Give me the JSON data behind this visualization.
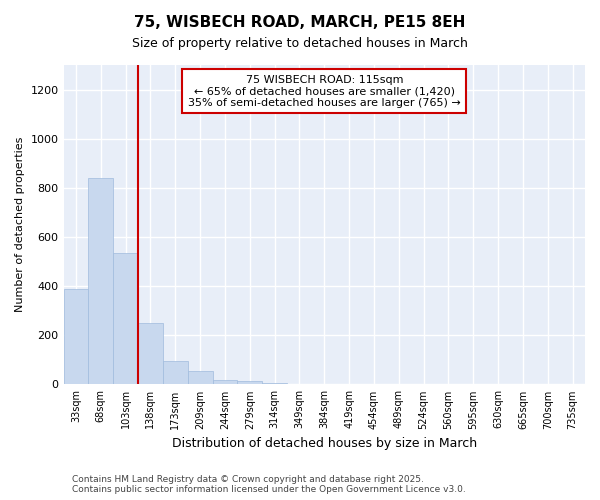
{
  "title": "75, WISBECH ROAD, MARCH, PE15 8EH",
  "subtitle": "Size of property relative to detached houses in March",
  "xlabel": "Distribution of detached houses by size in March",
  "ylabel": "Number of detached properties",
  "bar_color": "#c8d8ee",
  "bar_edge_color": "#a0bbdd",
  "categories": [
    "33sqm",
    "68sqm",
    "103sqm",
    "138sqm",
    "173sqm",
    "209sqm",
    "244sqm",
    "279sqm",
    "314sqm",
    "349sqm",
    "384sqm",
    "419sqm",
    "454sqm",
    "489sqm",
    "524sqm",
    "560sqm",
    "595sqm",
    "630sqm",
    "665sqm",
    "700sqm",
    "735sqm"
  ],
  "values": [
    390,
    840,
    535,
    248,
    97,
    55,
    20,
    12,
    5,
    2,
    1,
    0,
    0,
    0,
    0,
    0,
    0,
    0,
    0,
    0,
    0
  ],
  "ylim": [
    0,
    1300
  ],
  "yticks": [
    0,
    200,
    400,
    600,
    800,
    1000,
    1200
  ],
  "annotation_title": "75 WISBECH ROAD: 115sqm",
  "annotation_line1": "← 65% of detached houses are smaller (1,420)",
  "annotation_line2": "35% of semi-detached houses are larger (765) →",
  "annotation_box_color": "#ffffff",
  "annotation_box_edge": "#cc0000",
  "footnote1": "Contains HM Land Registry data © Crown copyright and database right 2025.",
  "footnote2": "Contains public sector information licensed under the Open Government Licence v3.0.",
  "fig_bg_color": "#ffffff",
  "plot_bg_color": "#e8eef8",
  "grid_color": "#ffffff",
  "red_line_color": "#cc0000"
}
